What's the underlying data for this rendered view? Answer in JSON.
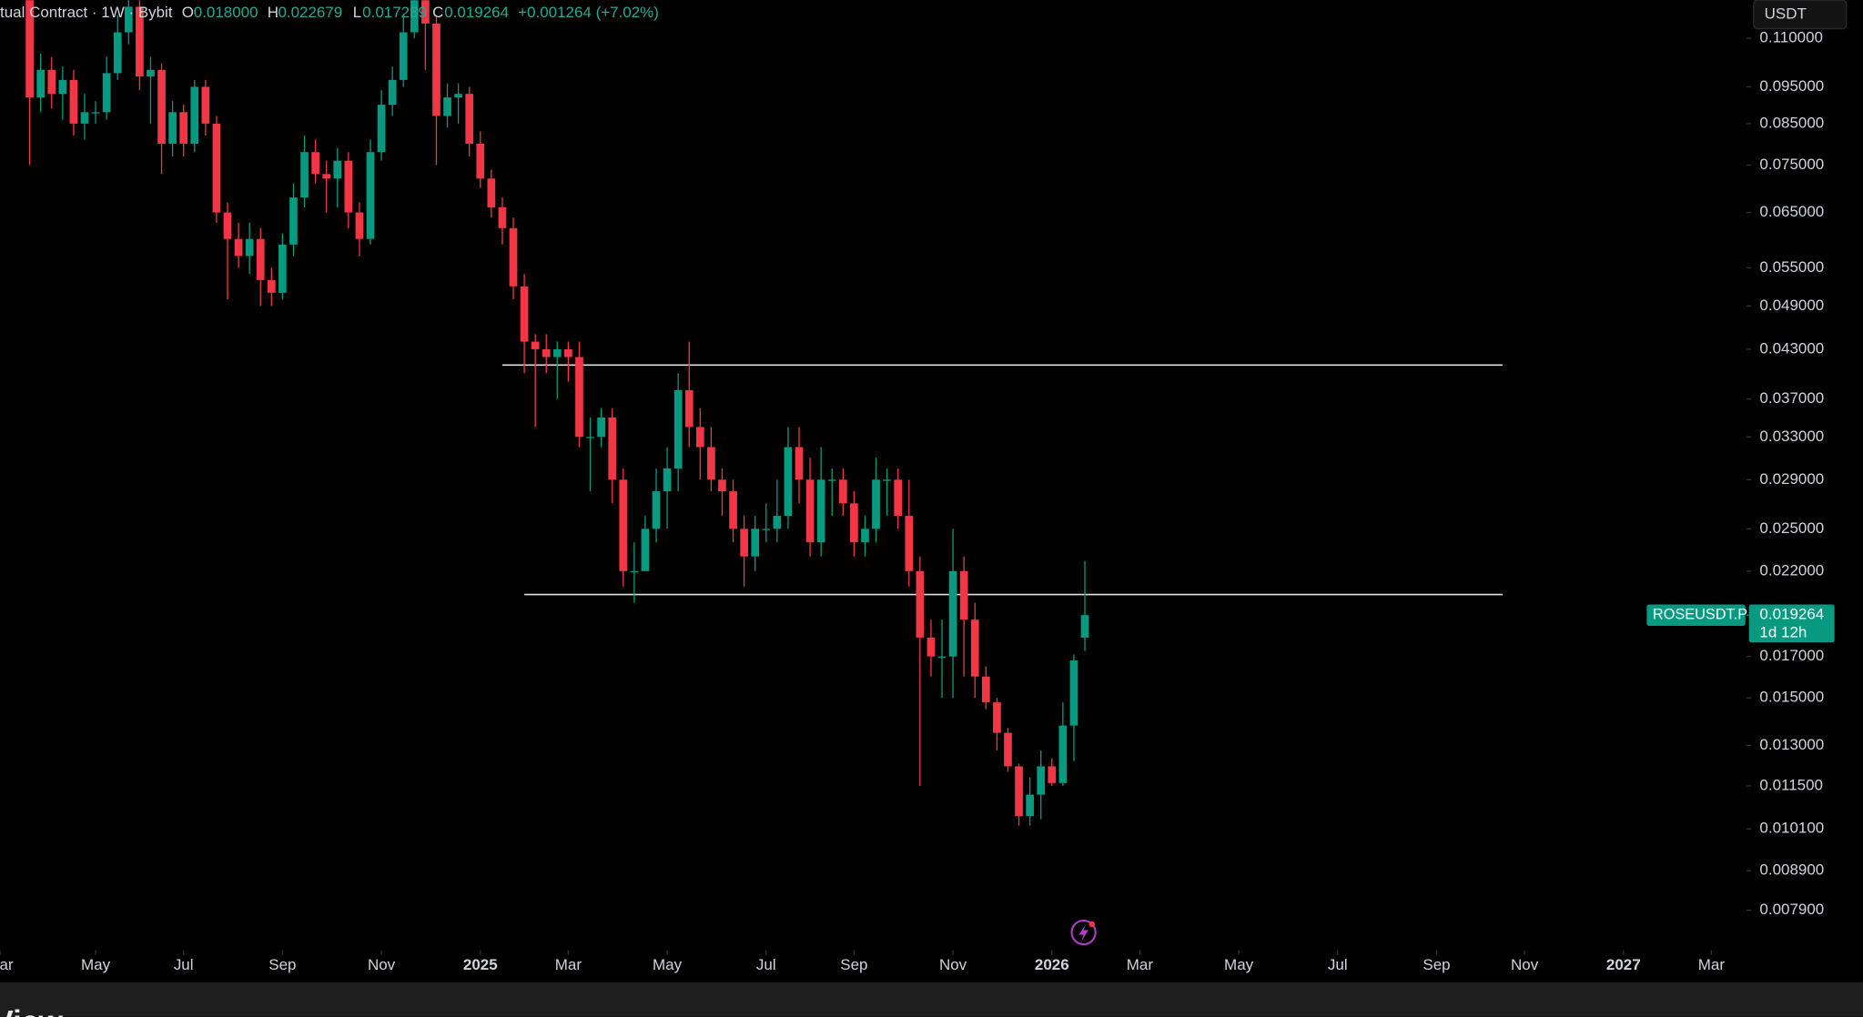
{
  "chart_data": {
    "type": "candlestick",
    "title": "tual Contract · 1W · Bybit",
    "ohlc_labels": [
      "O",
      "H",
      "L",
      "C"
    ],
    "ohlc_values": [
      "0.018000",
      "0.022679",
      "0.017289",
      "0.019264"
    ],
    "change": "+0.001264 (+7.02%)",
    "currency": "USDT",
    "symbol_tag": "ROSEUSDT.P",
    "last_price": {
      "value": 0.019264,
      "label": "0.019264"
    },
    "countdown": "1d 12h",
    "footer": "View",
    "up_color": "#089981",
    "down_color": "#f23645",
    "log_scale": true,
    "ylim": [
      0.007,
      0.1234
    ],
    "yticks": [
      {
        "value": 0.11,
        "label": "0.110000"
      },
      {
        "value": 0.095,
        "label": "0.095000"
      },
      {
        "value": 0.085,
        "label": "0.085000"
      },
      {
        "value": 0.075,
        "label": "0.075000"
      },
      {
        "value": 0.065,
        "label": "0.065000"
      },
      {
        "value": 0.055,
        "label": "0.055000"
      },
      {
        "value": 0.049,
        "label": "0.049000"
      },
      {
        "value": 0.043,
        "label": "0.043000"
      },
      {
        "value": 0.037,
        "label": "0.037000"
      },
      {
        "value": 0.033,
        "label": "0.033000"
      },
      {
        "value": 0.029,
        "label": "0.029000"
      },
      {
        "value": 0.025,
        "label": "0.025000"
      },
      {
        "value": 0.022,
        "label": "0.022000"
      },
      {
        "value": 0.017,
        "label": "0.017000"
      },
      {
        "value": 0.015,
        "label": "0.015000"
      },
      {
        "value": 0.013,
        "label": "0.013000"
      },
      {
        "value": 0.0115,
        "label": "0.011500"
      },
      {
        "value": 0.0101,
        "label": "0.010100"
      },
      {
        "value": 0.0089,
        "label": "0.008900"
      },
      {
        "value": 0.0079,
        "label": "0.007900"
      }
    ],
    "xlim": [
      -43.7,
      115.2
    ],
    "xticks": [
      {
        "value": -43.7,
        "label": "Mar"
      },
      {
        "value": -35,
        "label": "May"
      },
      {
        "value": -27,
        "label": "Jul"
      },
      {
        "value": -18,
        "label": "Sep"
      },
      {
        "value": -9,
        "label": "Nov"
      },
      {
        "value": 0,
        "label": "2025"
      },
      {
        "value": 8,
        "label": "Mar"
      },
      {
        "value": 17,
        "label": "May"
      },
      {
        "value": 26,
        "label": "Jul"
      },
      {
        "value": 34,
        "label": "Sep"
      },
      {
        "value": 43,
        "label": "Nov"
      },
      {
        "value": 52,
        "label": "2026"
      },
      {
        "value": 60,
        "label": "Mar"
      },
      {
        "value": 69,
        "label": "May"
      },
      {
        "value": 78,
        "label": "Jul"
      },
      {
        "value": 87,
        "label": "Sep"
      },
      {
        "value": 95,
        "label": "Nov"
      },
      {
        "value": 104,
        "label": "2027"
      },
      {
        "value": 112,
        "label": "Mar"
      }
    ],
    "hlines": [
      {
        "value": 0.041,
        "start": 2,
        "end": 93
      },
      {
        "value": 0.0205,
        "start": 4,
        "end": 93
      }
    ],
    "x": [
      -41,
      -40,
      -39,
      -38,
      -37,
      -36,
      -35,
      -34,
      -33,
      -32,
      -31,
      -30,
      -29,
      -28,
      -27,
      -26,
      -25,
      -24,
      -23,
      -22,
      -21,
      -20,
      -19,
      -18,
      -17,
      -16,
      -15,
      -14,
      -13,
      -12,
      -11,
      -10,
      -9,
      -8,
      -7,
      -6,
      -5,
      -4,
      -3,
      -2,
      -1,
      0,
      1,
      2,
      3,
      4,
      5,
      6,
      7,
      8,
      9,
      10,
      11,
      12,
      13,
      14,
      15,
      16,
      17,
      18,
      19,
      20,
      21,
      22,
      23,
      24,
      25,
      26,
      27,
      28,
      29,
      30,
      31,
      32,
      33,
      34,
      35,
      36,
      37,
      38,
      39,
      40,
      41,
      42,
      43,
      44,
      45,
      46,
      47,
      48,
      49,
      50,
      51,
      52,
      53,
      54,
      55
    ],
    "open": [
      0.125,
      0.092,
      0.1,
      0.093,
      0.097,
      0.085,
      0.088,
      0.088,
      0.099,
      0.112,
      0.121,
      0.098,
      0.1,
      0.08,
      0.088,
      0.08,
      0.095,
      0.085,
      0.065,
      0.06,
      0.057,
      0.06,
      0.053,
      0.051,
      0.059,
      0.068,
      0.078,
      0.073,
      0.072,
      0.076,
      0.065,
      0.06,
      0.078,
      0.09,
      0.097,
      0.112,
      0.13,
      0.115,
      0.087,
      0.092,
      0.093,
      0.08,
      0.072,
      0.066,
      0.062,
      0.052,
      0.044,
      0.043,
      0.042,
      0.043,
      0.042,
      0.033,
      0.033,
      0.035,
      0.029,
      0.022,
      0.022,
      0.025,
      0.028,
      0.03,
      0.038,
      0.034,
      0.032,
      0.029,
      0.028,
      0.025,
      0.023,
      0.025,
      0.025,
      0.026,
      0.032,
      0.029,
      0.024,
      0.029,
      0.029,
      0.027,
      0.024,
      0.025,
      0.029,
      0.029,
      0.026,
      0.022,
      0.018,
      0.017,
      0.017,
      0.022,
      0.019,
      0.016,
      0.0148,
      0.0135,
      0.0122,
      0.0105,
      0.0112,
      0.0122,
      0.0116,
      0.0138,
      0.018
    ],
    "high": [
      0.13,
      0.105,
      0.104,
      0.101,
      0.1,
      0.093,
      0.091,
      0.104,
      0.118,
      0.127,
      0.124,
      0.104,
      0.102,
      0.091,
      0.09,
      0.097,
      0.097,
      0.087,
      0.067,
      0.063,
      0.063,
      0.062,
      0.055,
      0.061,
      0.071,
      0.082,
      0.081,
      0.076,
      0.079,
      0.078,
      0.067,
      0.081,
      0.094,
      0.101,
      0.118,
      0.137,
      0.135,
      0.118,
      0.096,
      0.096,
      0.095,
      0.083,
      0.074,
      0.068,
      0.064,
      0.054,
      0.045,
      0.045,
      0.044,
      0.044,
      0.044,
      0.035,
      0.036,
      0.036,
      0.03,
      0.024,
      0.026,
      0.03,
      0.032,
      0.04,
      0.044,
      0.036,
      0.034,
      0.03,
      0.029,
      0.026,
      0.026,
      0.027,
      0.029,
      0.034,
      0.034,
      0.031,
      0.032,
      0.03,
      0.03,
      0.028,
      0.026,
      0.031,
      0.03,
      0.03,
      0.029,
      0.023,
      0.019,
      0.019,
      0.025,
      0.023,
      0.02,
      0.0165,
      0.015,
      0.0137,
      0.0123,
      0.0118,
      0.0128,
      0.0125,
      0.0148,
      0.0171,
      0.022679
    ],
    "low": [
      0.075,
      0.088,
      0.089,
      0.086,
      0.082,
      0.081,
      0.085,
      0.086,
      0.097,
      0.108,
      0.094,
      0.085,
      0.073,
      0.077,
      0.077,
      0.078,
      0.082,
      0.063,
      0.05,
      0.055,
      0.054,
      0.049,
      0.049,
      0.05,
      0.057,
      0.066,
      0.071,
      0.065,
      0.066,
      0.062,
      0.057,
      0.059,
      0.076,
      0.087,
      0.095,
      0.11,
      0.1,
      0.075,
      0.084,
      0.085,
      0.077,
      0.07,
      0.064,
      0.059,
      0.05,
      0.04,
      0.034,
      0.04,
      0.037,
      0.039,
      0.032,
      0.028,
      0.032,
      0.027,
      0.021,
      0.02,
      0.022,
      0.024,
      0.025,
      0.028,
      0.032,
      0.029,
      0.028,
      0.026,
      0.024,
      0.021,
      0.022,
      0.024,
      0.024,
      0.025,
      0.027,
      0.023,
      0.023,
      0.026,
      0.026,
      0.023,
      0.023,
      0.024,
      0.026,
      0.025,
      0.021,
      0.0115,
      0.016,
      0.015,
      0.015,
      0.016,
      0.015,
      0.0145,
      0.0128,
      0.012,
      0.0102,
      0.0102,
      0.0104,
      0.0115,
      0.0115,
      0.0124,
      0.017289
    ],
    "close": [
      0.092,
      0.1,
      0.093,
      0.097,
      0.085,
      0.088,
      0.088,
      0.099,
      0.112,
      0.121,
      0.098,
      0.1,
      0.08,
      0.088,
      0.08,
      0.095,
      0.085,
      0.065,
      0.06,
      0.057,
      0.06,
      0.053,
      0.051,
      0.059,
      0.068,
      0.078,
      0.073,
      0.072,
      0.076,
      0.065,
      0.06,
      0.078,
      0.09,
      0.097,
      0.112,
      0.13,
      0.115,
      0.087,
      0.092,
      0.093,
      0.08,
      0.072,
      0.066,
      0.062,
      0.052,
      0.044,
      0.043,
      0.042,
      0.043,
      0.042,
      0.033,
      0.033,
      0.035,
      0.029,
      0.022,
      0.022,
      0.025,
      0.028,
      0.03,
      0.038,
      0.034,
      0.032,
      0.029,
      0.028,
      0.025,
      0.023,
      0.025,
      0.025,
      0.026,
      0.032,
      0.029,
      0.024,
      0.029,
      0.029,
      0.027,
      0.024,
      0.025,
      0.029,
      0.029,
      0.026,
      0.022,
      0.018,
      0.017,
      0.017,
      0.022,
      0.019,
      0.016,
      0.0148,
      0.0135,
      0.0122,
      0.0105,
      0.0112,
      0.0122,
      0.0116,
      0.0138,
      0.0168,
      0.019264
    ]
  }
}
